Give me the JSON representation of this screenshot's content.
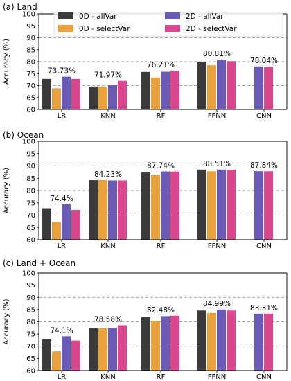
{
  "colors": {
    "0D - allVar": "#3b3a3c",
    "0D - selectVar": "#e9a23b",
    "2D - allVar": "#6b5bb6",
    "2D - selectVar": "#d9478e",
    "grid": "#888888"
  },
  "chart_data": [
    {
      "type": "bar",
      "title": "(a) Land",
      "ylabel": "Accuracy (%)",
      "ylim": [
        60,
        100
      ],
      "yticks": [
        60,
        65,
        70,
        75,
        80,
        85,
        90,
        95,
        100
      ],
      "grid_lines": [
        70,
        80,
        90
      ],
      "legend": "top",
      "categories": [
        "LR",
        "KNN",
        "RF",
        "FFNN",
        "CNN"
      ],
      "series": [
        {
          "name": "0D - allVar",
          "values": [
            72.8,
            69.6,
            75.7,
            80.0,
            null
          ]
        },
        {
          "name": "0D - selectVar",
          "values": [
            68.9,
            69.6,
            73.4,
            78.5,
            null
          ]
        },
        {
          "name": "2D - allVar",
          "values": [
            73.73,
            70.4,
            75.8,
            80.81,
            78.04
          ]
        },
        {
          "name": "2D - selectVar",
          "values": [
            72.8,
            71.97,
            76.21,
            80.2,
            78.0
          ]
        }
      ],
      "annotations": [
        {
          "category": "LR",
          "series": 2,
          "text": "73.73%"
        },
        {
          "category": "KNN",
          "series": 3,
          "text": "71.97%"
        },
        {
          "category": "RF",
          "series": 3,
          "text": "76.21%"
        },
        {
          "category": "FFNN",
          "series": 2,
          "text": "80.81%"
        },
        {
          "category": "CNN",
          "series": 2,
          "text": "78.04%"
        }
      ]
    },
    {
      "type": "bar",
      "title": "(b) Ocean",
      "ylabel": "Accuracy (%)",
      "ylim": [
        60,
        100
      ],
      "yticks": [
        60,
        65,
        70,
        75,
        80,
        85,
        90,
        95,
        100
      ],
      "grid_lines": [
        70,
        80,
        90
      ],
      "categories": [
        "LR",
        "KNN",
        "RF",
        "FFNN",
        "CNN"
      ],
      "series": [
        {
          "name": "0D - allVar",
          "values": [
            72.8,
            84.2,
            87.3,
            88.5,
            null
          ]
        },
        {
          "name": "0D - selectVar",
          "values": [
            67.2,
            84.23,
            86.4,
            87.8,
            null
          ]
        },
        {
          "name": "2D - allVar",
          "values": [
            74.4,
            84.1,
            87.74,
            88.51,
            87.84
          ]
        },
        {
          "name": "2D - selectVar",
          "values": [
            72.1,
            84.1,
            87.7,
            88.4,
            87.8
          ]
        }
      ],
      "annotations": [
        {
          "category": "LR",
          "series": 2,
          "text": "74.4%"
        },
        {
          "category": "KNN",
          "series": 1,
          "text": "84.23%"
        },
        {
          "category": "RF",
          "series": 2,
          "text": "87.74%"
        },
        {
          "category": "FFNN",
          "series": 2,
          "text": "88.51%"
        },
        {
          "category": "CNN",
          "series": 2,
          "text": "87.84%"
        }
      ]
    },
    {
      "type": "bar",
      "title": "(c) Land + Ocean",
      "ylabel": "Accuracy (%)",
      "ylim": [
        60,
        100
      ],
      "yticks": [
        60,
        65,
        70,
        75,
        80,
        85,
        90,
        95,
        100
      ],
      "grid_lines": [
        70,
        80,
        90
      ],
      "categories": [
        "LR",
        "KNN",
        "RF",
        "FFNN",
        "CNN"
      ],
      "series": [
        {
          "name": "0D - allVar",
          "values": [
            72.8,
            77.3,
            81.9,
            84.6,
            null
          ]
        },
        {
          "name": "0D - selectVar",
          "values": [
            67.9,
            77.3,
            80.4,
            83.6,
            null
          ]
        },
        {
          "name": "2D - allVar",
          "values": [
            74.1,
            77.6,
            82.3,
            84.99,
            83.31
          ]
        },
        {
          "name": "2D - selectVar",
          "values": [
            72.3,
            78.58,
            82.48,
            84.6,
            83.3
          ]
        }
      ],
      "annotations": [
        {
          "category": "LR",
          "series": 2,
          "text": "74.1%"
        },
        {
          "category": "KNN",
          "series": 3,
          "text": "78.58%"
        },
        {
          "category": "RF",
          "series": 3,
          "text": "82.48%"
        },
        {
          "category": "FFNN",
          "series": 2,
          "text": "84.99%"
        },
        {
          "category": "CNN",
          "series": 2,
          "text": "83.31%"
        }
      ]
    }
  ]
}
